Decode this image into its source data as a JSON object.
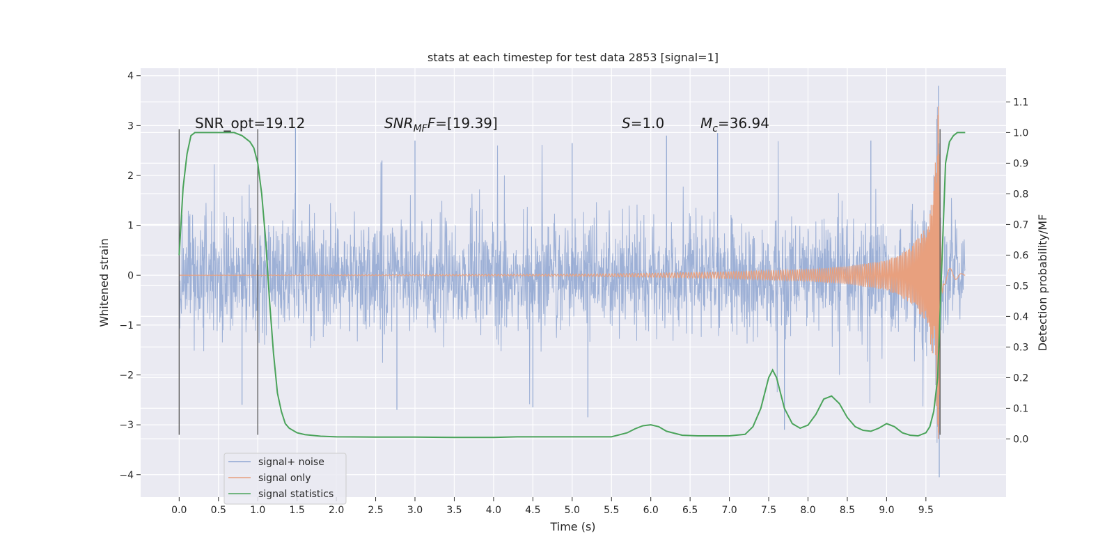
{
  "chart_data": {
    "type": "line",
    "title": "stats at each timestep for test data 2853 [signal=1]",
    "xlabel": "Time (s)",
    "ylabel_left": "Whitened strain",
    "ylabel_right": "Detection probability/MF",
    "xlim": [
      -0.49,
      10.52
    ],
    "ylim_left": [
      -4.45,
      4.15
    ],
    "ylim_right": [
      -0.19,
      1.21
    ],
    "x_ticks": [
      0.0,
      0.5,
      1.0,
      1.5,
      2.0,
      2.5,
      3.0,
      3.5,
      4.0,
      4.5,
      5.0,
      5.5,
      6.0,
      6.5,
      7.0,
      7.5,
      8.0,
      8.5,
      9.0,
      9.5
    ],
    "x_tick_labels": [
      "0.0",
      "0.5",
      "1.0",
      "1.5",
      "2.0",
      "2.5",
      "3.0",
      "3.5",
      "4.0",
      "4.5",
      "5.0",
      "5.5",
      "6.0",
      "6.5",
      "7.0",
      "7.5",
      "8.0",
      "8.5",
      "9.0",
      "9.5"
    ],
    "y_ticks_left": [
      -4,
      -3,
      -2,
      -1,
      0,
      1,
      2,
      3,
      4
    ],
    "y_tick_labels_left": [
      "−4",
      "−3",
      "−2",
      "−1",
      "0",
      "1",
      "2",
      "3",
      "4"
    ],
    "y_ticks_right": [
      0.0,
      0.1,
      0.2,
      0.3,
      0.4,
      0.5,
      0.6,
      0.7,
      0.8,
      0.9,
      1.0,
      1.1
    ],
    "y_tick_labels_right": [
      "0.0",
      "0.1",
      "0.2",
      "0.3",
      "0.4",
      "0.5",
      "0.6",
      "0.7",
      "0.8",
      "0.9",
      "1.0",
      "1.1"
    ],
    "grid": true,
    "legend": {
      "placement": "lower-left",
      "entries": [
        "signal+ noise",
        "signal only",
        "signal statistics"
      ]
    },
    "colors": {
      "signal_noise": "#8fa6d1",
      "signal_only": "#e8a07e",
      "statistics": "#4aa35a",
      "vlines": "#555555",
      "background": "#eaeaf2",
      "grid": "#ffffff"
    },
    "annotations": {
      "snr_opt": "SNR_opt=19.12",
      "snr_mf_name": "SNR",
      "snr_mf_sub": "MF",
      "snr_mf_value": "=[19.39]",
      "s_name": "S",
      "s_value": "=1.0",
      "mc_name": "M",
      "mc_sub": "c",
      "mc_value": "=36.94"
    },
    "vertical_lines": [
      {
        "x": 0.0,
        "y_range": [
          -3.2,
          2.93
        ]
      },
      {
        "x": 1.0,
        "y_range": [
          -3.2,
          2.93
        ]
      },
      {
        "x": 9.68,
        "y_range": [
          -3.2,
          2.93
        ]
      }
    ],
    "series": [
      {
        "name": "signal+ noise",
        "axis": "left",
        "x_range": [
          0.0,
          10.0
        ],
        "noise_band": [
          -1.4,
          1.5
        ],
        "notable_peaks": [
          {
            "x": 1.48,
            "y": 2.95
          },
          {
            "x": 2.58,
            "y": 2.3
          },
          {
            "x": 3.0,
            "y": 2.7
          },
          {
            "x": 5.0,
            "y": 2.65
          },
          {
            "x": 6.2,
            "y": 2.8
          },
          {
            "x": 6.85,
            "y": 2.85
          },
          {
            "x": 8.8,
            "y": 2.7
          },
          {
            "x": 9.66,
            "y": 3.8
          },
          {
            "x": 0.8,
            "y": -2.6
          },
          {
            "x": 2.77,
            "y": -2.7
          },
          {
            "x": 4.5,
            "y": -2.65
          },
          {
            "x": 5.2,
            "y": -2.85
          },
          {
            "x": 7.7,
            "y": -3.1
          },
          {
            "x": 9.67,
            "y": -4.05
          }
        ]
      },
      {
        "name": "signal only",
        "axis": "left",
        "x_range": [
          0.0,
          10.0
        ],
        "merger_time": 9.68,
        "envelope": [
          [
            0.0,
            0.0
          ],
          [
            5.0,
            0.02
          ],
          [
            6.0,
            0.04
          ],
          [
            7.0,
            0.07
          ],
          [
            8.0,
            0.12
          ],
          [
            8.5,
            0.18
          ],
          [
            9.0,
            0.3
          ],
          [
            9.3,
            0.55
          ],
          [
            9.5,
            0.95
          ],
          [
            9.6,
            1.7
          ],
          [
            9.66,
            3.4
          ],
          [
            9.69,
            1.5
          ],
          [
            9.72,
            0.2
          ],
          [
            10.0,
            0.0
          ]
        ]
      },
      {
        "name": "signal statistics",
        "axis": "right",
        "x": [
          0.0,
          0.05,
          0.1,
          0.15,
          0.2,
          0.3,
          0.4,
          0.5,
          0.6,
          0.7,
          0.8,
          0.9,
          0.95,
          1.0,
          1.05,
          1.1,
          1.15,
          1.2,
          1.25,
          1.3,
          1.35,
          1.4,
          1.5,
          1.6,
          1.8,
          2.0,
          2.5,
          3.0,
          3.5,
          4.0,
          4.3,
          4.5,
          5.0,
          5.5,
          5.7,
          5.8,
          5.9,
          6.0,
          6.1,
          6.2,
          6.4,
          6.6,
          7.0,
          7.2,
          7.3,
          7.4,
          7.5,
          7.55,
          7.6,
          7.7,
          7.8,
          7.9,
          8.0,
          8.1,
          8.2,
          8.3,
          8.4,
          8.5,
          8.6,
          8.7,
          8.8,
          8.9,
          9.0,
          9.1,
          9.2,
          9.3,
          9.4,
          9.5,
          9.55,
          9.6,
          9.65,
          9.7,
          9.75,
          9.8,
          9.85,
          9.9,
          10.0
        ],
        "values": [
          0.6,
          0.82,
          0.93,
          0.99,
          1.0,
          1.0,
          1.0,
          1.0,
          1.0,
          1.0,
          0.99,
          0.97,
          0.95,
          0.9,
          0.8,
          0.65,
          0.45,
          0.28,
          0.15,
          0.09,
          0.05,
          0.035,
          0.02,
          0.014,
          0.009,
          0.007,
          0.006,
          0.006,
          0.005,
          0.005,
          0.007,
          0.007,
          0.007,
          0.007,
          0.02,
          0.033,
          0.043,
          0.046,
          0.04,
          0.025,
          0.012,
          0.01,
          0.01,
          0.015,
          0.04,
          0.1,
          0.2,
          0.225,
          0.2,
          0.1,
          0.05,
          0.035,
          0.045,
          0.08,
          0.13,
          0.14,
          0.115,
          0.07,
          0.04,
          0.028,
          0.025,
          0.035,
          0.05,
          0.04,
          0.02,
          0.012,
          0.01,
          0.02,
          0.04,
          0.09,
          0.2,
          0.55,
          0.9,
          0.97,
          0.99,
          1.0,
          1.0
        ]
      }
    ]
  }
}
